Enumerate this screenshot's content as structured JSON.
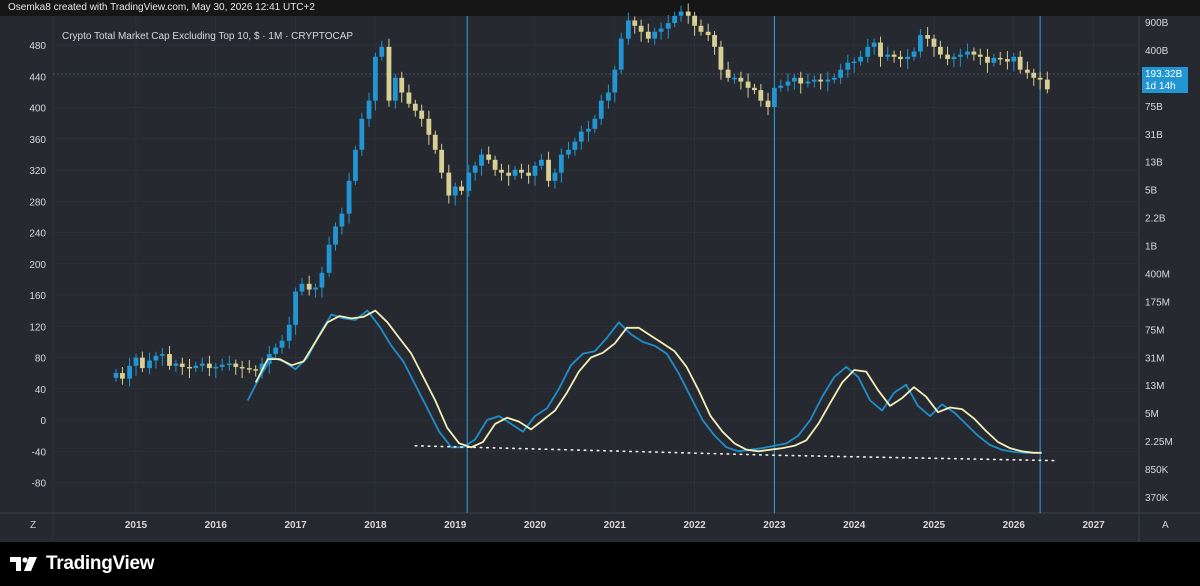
{
  "header": {
    "attribution": "Osemka8 created with TradingView.com, May 30, 2026 12:41 UTC+2"
  },
  "chart_title": "Crypto Total Market Cap Excluding Top 10, $ · 1M · CRYPTOCAP",
  "price_badge": {
    "value": "193.32B",
    "countdown": "1d 14h"
  },
  "axis_corner": {
    "left": "Z",
    "right": "A"
  },
  "brand": {
    "name": "TradingView"
  },
  "colors": {
    "background": "#262930",
    "candle_up": "#2196d3",
    "candle_down": "#d7cf94",
    "osc_fast": "#1f8fc9",
    "osc_slow": "#f3efb8",
    "vline": "#27a6e3",
    "dots": "#eeeeee"
  },
  "chart_data": {
    "type": "line",
    "title": "Crypto Total Market Cap Excluding Top 10, $ · 1M · CRYPTOCAP",
    "x_axis_labels": [
      "2015",
      "2016",
      "2017",
      "2018",
      "2019",
      "2020",
      "2021",
      "2022",
      "2023",
      "2024",
      "2025",
      "2026",
      "2027"
    ],
    "left_axis": {
      "ticks": [
        480,
        440,
        400,
        360,
        320,
        280,
        240,
        200,
        160,
        120,
        80,
        40,
        0,
        -40,
        -80
      ],
      "range": [
        -100,
        500
      ]
    },
    "right_axis": {
      "scale": "log",
      "ticks": [
        "900B",
        "400B",
        "175B",
        "75B",
        "31B",
        "13B",
        "5B",
        "2.2B",
        "1B",
        "400M",
        "175M",
        "75M",
        "31M",
        "13M",
        "5M",
        "2.25M",
        "850K",
        "370K"
      ]
    },
    "vertical_markers": [
      2019.15,
      2023.0,
      2026.33
    ],
    "market_cap_candles": {
      "scale_note": "log price scale (USD)",
      "x": [
        2014.75,
        2014.83,
        2014.92,
        2015.0,
        2015.08,
        2015.17,
        2015.25,
        2015.33,
        2015.42,
        2015.5,
        2015.58,
        2015.67,
        2015.75,
        2015.83,
        2015.92,
        2016.0,
        2016.08,
        2016.17,
        2016.25,
        2016.33,
        2016.42,
        2016.5,
        2016.58,
        2016.67,
        2016.75,
        2016.83,
        2016.92,
        2017.0,
        2017.08,
        2017.17,
        2017.25,
        2017.33,
        2017.42,
        2017.5,
        2017.58,
        2017.67,
        2017.75,
        2017.83,
        2017.92,
        2018.0,
        2018.08,
        2018.17,
        2018.25,
        2018.33,
        2018.42,
        2018.5,
        2018.58,
        2018.67,
        2018.75,
        2018.83,
        2018.92,
        2019.0,
        2019.08,
        2019.17,
        2019.25,
        2019.33,
        2019.42,
        2019.5,
        2019.58,
        2019.67,
        2019.75,
        2019.83,
        2019.92,
        2020.0,
        2020.08,
        2020.17,
        2020.25,
        2020.33,
        2020.42,
        2020.5,
        2020.58,
        2020.67,
        2020.75,
        2020.83,
        2020.92,
        2021.0,
        2021.08,
        2021.17,
        2021.25,
        2021.33,
        2021.42,
        2021.5,
        2021.58,
        2021.67,
        2021.75,
        2021.83,
        2021.92,
        2022.0,
        2022.08,
        2022.17,
        2022.25,
        2022.33,
        2022.42,
        2022.5,
        2022.58,
        2022.67,
        2022.75,
        2022.83,
        2022.92,
        2023.0,
        2023.08,
        2023.17,
        2023.25,
        2023.33,
        2023.42,
        2023.5,
        2023.58,
        2023.67,
        2023.75,
        2023.83,
        2023.92,
        2024.0,
        2024.08,
        2024.17,
        2024.25,
        2024.33,
        2024.42,
        2024.5,
        2024.58,
        2024.67,
        2024.75,
        2024.83,
        2024.92,
        2025.0,
        2025.08,
        2025.17,
        2025.25,
        2025.33,
        2025.42,
        2025.5,
        2025.58,
        2025.67,
        2025.75,
        2025.83,
        2025.92,
        2026.0,
        2026.08,
        2026.17,
        2026.25,
        2026.33,
        2026.42
      ],
      "close": [
        340,
        300,
        400,
        480,
        380,
        450,
        500,
        520,
        400,
        420,
        390,
        380,
        400,
        420,
        380,
        390,
        410,
        420,
        390,
        380,
        370,
        360,
        420,
        520,
        600,
        700,
        1000,
        2100,
        2500,
        2200,
        2300,
        3200,
        6000,
        9000,
        12000,
        25000,
        50000,
        100000,
        150000,
        400000,
        500000,
        150000,
        250000,
        180000,
        140000,
        120000,
        100000,
        70000,
        50000,
        30000,
        18000,
        22000,
        20000,
        30000,
        35000,
        45000,
        40000,
        32000,
        30000,
        28000,
        32000,
        30000,
        28000,
        35000,
        40000,
        25000,
        30000,
        45000,
        50000,
        60000,
        75000,
        80000,
        100000,
        150000,
        180000,
        300000,
        600000,
        900000,
        800000,
        700000,
        600000,
        700000,
        750000,
        850000,
        1000000,
        1100000,
        1000000,
        800000,
        700000,
        650000,
        500000,
        300000,
        250000,
        250000,
        230000,
        200000,
        190000,
        150000,
        130000,
        200000,
        210000,
        230000,
        250000,
        220000,
        230000,
        240000,
        230000,
        240000,
        250000,
        300000,
        350000,
        360000,
        400000,
        500000,
        550000,
        400000,
        420000,
        400000,
        380000,
        400000,
        450000,
        650000,
        600000,
        500000,
        420000,
        380000,
        400000,
        420000,
        450000,
        420000,
        400000,
        350000,
        390000,
        380000,
        360000,
        400000,
        300000,
        280000,
        250000,
        240000,
        193320
      ]
    },
    "oscillator": {
      "scale_note": "left axis",
      "series": [
        {
          "name": "",
          "x": [
            2016.4,
            2016.55,
            2016.7,
            2016.85,
            2017.0,
            2017.15,
            2017.3,
            2017.45,
            2017.6,
            2017.75,
            2017.9,
            2018.05,
            2018.2,
            2018.35,
            2018.5,
            2018.65,
            2018.8,
            2018.95,
            2019.1,
            2019.25,
            2019.4,
            2019.55,
            2019.7,
            2019.85,
            2020.0,
            2020.15,
            2020.3,
            2020.45,
            2020.6,
            2020.75,
            2020.9,
            2021.05,
            2021.2,
            2021.35,
            2021.5,
            2021.65,
            2021.8,
            2021.95,
            2022.1,
            2022.25,
            2022.4,
            2022.55,
            2022.7,
            2022.85,
            2023.0,
            2023.15,
            2023.3,
            2023.45,
            2023.6,
            2023.75,
            2023.9,
            2024.05,
            2024.2,
            2024.35,
            2024.5,
            2024.65,
            2024.8,
            2024.95,
            2025.1,
            2025.25,
            2025.4,
            2025.55,
            2025.7,
            2025.85,
            2026.0,
            2026.15,
            2026.3
          ],
          "y": [
            25,
            55,
            80,
            75,
            65,
            80,
            110,
            135,
            130,
            128,
            140,
            120,
            95,
            75,
            45,
            15,
            -15,
            -35,
            -35,
            -25,
            0,
            5,
            -5,
            -15,
            5,
            15,
            40,
            70,
            85,
            88,
            105,
            125,
            110,
            100,
            95,
            85,
            60,
            30,
            0,
            -20,
            -35,
            -40,
            -38,
            -36,
            -33,
            -30,
            -20,
            0,
            30,
            55,
            68,
            55,
            25,
            12,
            35,
            45,
            18,
            5,
            20,
            10,
            -5,
            -20,
            -32,
            -38,
            -41,
            -42,
            -42
          ]
        },
        {
          "name": "",
          "x": [
            2016.5,
            2016.65,
            2016.8,
            2016.95,
            2017.1,
            2017.25,
            2017.4,
            2017.55,
            2017.7,
            2017.85,
            2018.0,
            2018.15,
            2018.3,
            2018.45,
            2018.6,
            2018.75,
            2018.9,
            2019.05,
            2019.2,
            2019.35,
            2019.5,
            2019.65,
            2019.8,
            2019.95,
            2020.1,
            2020.25,
            2020.4,
            2020.55,
            2020.7,
            2020.85,
            2021.0,
            2021.15,
            2021.3,
            2021.45,
            2021.6,
            2021.75,
            2021.9,
            2022.05,
            2022.2,
            2022.35,
            2022.5,
            2022.65,
            2022.8,
            2022.95,
            2023.1,
            2023.25,
            2023.4,
            2023.55,
            2023.7,
            2023.85,
            2024.0,
            2024.15,
            2024.3,
            2024.45,
            2024.6,
            2024.75,
            2024.9,
            2025.05,
            2025.2,
            2025.35,
            2025.5,
            2025.65,
            2025.8,
            2025.95,
            2026.1,
            2026.25,
            2026.35
          ],
          "y": [
            48,
            78,
            78,
            70,
            75,
            100,
            125,
            133,
            130,
            132,
            140,
            125,
            105,
            85,
            55,
            25,
            -10,
            -30,
            -35,
            -28,
            -5,
            3,
            -2,
            -12,
            0,
            12,
            35,
            62,
            80,
            86,
            98,
            118,
            118,
            108,
            98,
            88,
            68,
            38,
            5,
            -15,
            -30,
            -38,
            -40,
            -38,
            -36,
            -33,
            -26,
            -5,
            22,
            48,
            64,
            62,
            38,
            18,
            28,
            42,
            30,
            10,
            16,
            14,
            2,
            -14,
            -28,
            -36,
            -40,
            -42,
            -42
          ]
        }
      ],
      "trendline": {
        "style": "dotted",
        "points": [
          [
            2018.5,
            -33
          ],
          [
            2023.0,
            -45
          ],
          [
            2026.5,
            -52
          ]
        ]
      }
    }
  }
}
